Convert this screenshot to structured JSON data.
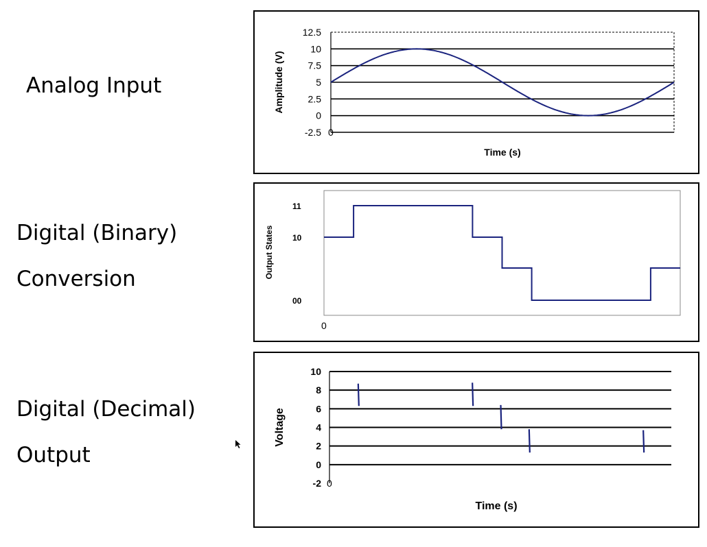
{
  "labels": {
    "analog": "Analog Input",
    "binary_line1": "Digital (Binary)",
    "binary_line2": "Conversion",
    "decimal_line1": "Digital (Decimal)",
    "decimal_line2": "Output"
  },
  "colors": {
    "series": "#1a237e",
    "grid": "#000000"
  },
  "chart_data": [
    {
      "type": "line",
      "title": "",
      "xlabel": "Time (s)",
      "ylabel": "Amplitude (V)",
      "ylim": [
        -2.5,
        12.5
      ],
      "yticks": [
        "12.5",
        "10",
        "7.5",
        "5",
        "2.5",
        "0",
        "-2.5"
      ],
      "yticks_values": [
        12.5,
        10,
        7.5,
        5,
        2.5,
        0,
        -2.5
      ],
      "x_origin_label": "0",
      "grid": true,
      "series": [
        {
          "x": [
            0,
            0.05,
            0.1,
            0.15,
            0.2,
            0.25,
            0.3,
            0.35,
            0.4,
            0.45,
            0.5,
            0.55,
            0.6,
            0.65,
            0.7,
            0.75,
            0.8,
            0.85,
            0.9,
            0.95,
            1.0
          ],
          "values": [
            5,
            6.55,
            7.94,
            9.05,
            9.76,
            10,
            9.76,
            9.05,
            7.94,
            6.55,
            5,
            3.45,
            2.06,
            0.95,
            0.24,
            0,
            0.24,
            0.95,
            2.06,
            3.45,
            5
          ]
        }
      ]
    },
    {
      "type": "line",
      "title": "",
      "xlabel": "",
      "ylabel": "Output States",
      "yticks": [
        "11",
        "10",
        "00"
      ],
      "x_origin_label": "0",
      "grid": false,
      "series": [
        {
          "x": [
            0,
            0.083,
            0.083,
            0.417,
            0.417,
            0.5,
            0.5,
            0.583,
            0.583,
            0.917,
            0.917,
            1.0
          ],
          "values": [
            2,
            2,
            3,
            3,
            2,
            2,
            1,
            1,
            0,
            0,
            1,
            1
          ]
        }
      ]
    },
    {
      "type": "bar",
      "title": "",
      "xlabel": "Time (s)",
      "ylabel": "Voltage",
      "ylim": [
        -2,
        10
      ],
      "yticks": [
        "10",
        "8",
        "6",
        "4",
        "2",
        "0",
        "-2"
      ],
      "yticks_values": [
        10,
        8,
        6,
        4,
        2,
        0,
        -2
      ],
      "x_origin_label": "0",
      "grid": true,
      "marks": [
        {
          "x": 0.083,
          "low": 6.3,
          "high": 8.7
        },
        {
          "x": 0.417,
          "low": 6.3,
          "high": 8.8
        },
        {
          "x": 0.5,
          "low": 3.8,
          "high": 6.4
        },
        {
          "x": 0.583,
          "low": 1.3,
          "high": 3.8
        },
        {
          "x": 0.917,
          "low": 1.3,
          "high": 3.7
        }
      ]
    }
  ]
}
